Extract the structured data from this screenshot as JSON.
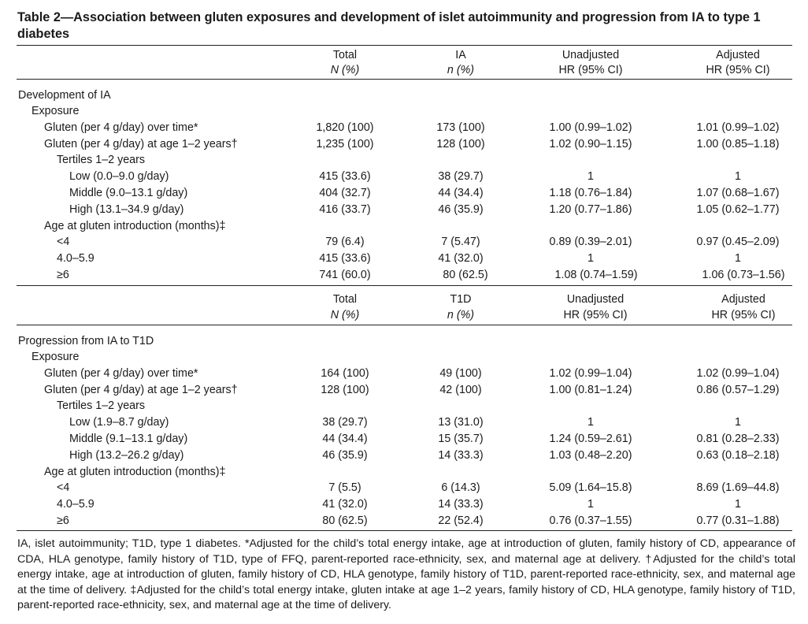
{
  "title": "Table 2—Association between gluten exposures and development of islet autoimmunity and progression from IA to type 1 diabetes",
  "header1": {
    "total": "Total",
    "total_sub": "N (%)",
    "ia": "IA",
    "ia_sub": "n (%)",
    "unadj": "Unadjusted",
    "unadj_sub": "HR (95% CI)",
    "adj": "Adjusted",
    "adj_sub": "HR (95% CI)"
  },
  "header2": {
    "total": "Total",
    "total_sub": "N (%)",
    "t1d": "T1D",
    "t1d_sub": "n (%)",
    "unadj": "Unadjusted",
    "unadj_sub": "HR (95% CI)",
    "adj": "Adjusted",
    "adj_sub": "HR (95% CI)"
  },
  "section1": {
    "heading": "Development of IA",
    "rows": [
      {
        "label": "Exposure",
        "total": "",
        "n": "",
        "unadj": "",
        "adj": ""
      },
      {
        "label": "Gluten (per 4 g/day) over time*",
        "total": "1,820 (100)",
        "n": "173 (100)",
        "unadj": "1.00 (0.99–1.02)",
        "adj": "1.01 (0.99–1.02)"
      },
      {
        "label": "Gluten (per 4 g/day) at age 1–2 years†",
        "total": "1,235 (100)",
        "n": "128 (100)",
        "unadj": "1.02 (0.90–1.15)",
        "adj": "1.00 (0.85–1.18)"
      },
      {
        "label": "Tertiles 1–2 years",
        "total": "",
        "n": "",
        "unadj": "",
        "adj": ""
      },
      {
        "label": "Low (0.0–9.0 g/day)",
        "total": "415 (33.6)",
        "n": "38 (29.7)",
        "unadj": "1",
        "adj": "1"
      },
      {
        "label": "Middle (9.0–13.1 g/day)",
        "total": "404 (32.7)",
        "n": "44 (34.4)",
        "unadj": "1.18 (0.76–1.84)",
        "adj": "1.07 (0.68–1.67)"
      },
      {
        "label": "High (13.1–34.9 g/day)",
        "total": "416 (33.7)",
        "n": "46 (35.9)",
        "unadj": "1.20 (0.77–1.86)",
        "adj": "1.05 (0.62–1.77)"
      },
      {
        "label": "Age at gluten introduction (months)‡",
        "total": "",
        "n": "",
        "unadj": "",
        "adj": ""
      },
      {
        "label": "<4",
        "total": "79 (6.4)",
        "n": "7 (5.47)",
        "unadj": "0.89 (0.39–2.01)",
        "adj": "0.97 (0.45–2.09)"
      },
      {
        "label": "4.0–5.9",
        "total": "415 (33.6)",
        "n": "41 (32.0)",
        "unadj": "1",
        "adj": "1"
      },
      {
        "label": "≥6",
        "total": "741 (60.0)",
        "n": "80 (62.5)",
        "unadj": "1.08 (0.74–1.59)",
        "adj": "1.06 (0.73–1.56)"
      }
    ]
  },
  "section2": {
    "heading": "Progression from IA to T1D",
    "rows": [
      {
        "label": "Exposure",
        "total": "",
        "n": "",
        "unadj": "",
        "adj": ""
      },
      {
        "label": "Gluten (per 4 g/day) over time*",
        "total": "164 (100)",
        "n": "49 (100)",
        "unadj": "1.02 (0.99–1.04)",
        "adj": "1.02 (0.99–1.04)"
      },
      {
        "label": "Gluten (per 4 g/day) at age 1–2 years†",
        "total": "128 (100)",
        "n": "42 (100)",
        "unadj": "1.00 (0.81–1.24)",
        "adj": "0.86 (0.57–1.29)"
      },
      {
        "label": "Tertiles 1–2 years",
        "total": "",
        "n": "",
        "unadj": "",
        "adj": ""
      },
      {
        "label": "Low (1.9–8.7 g/day)",
        "total": "38 (29.7)",
        "n": "13 (31.0)",
        "unadj": "1",
        "adj": "1"
      },
      {
        "label": "Middle (9.1–13.1 g/day)",
        "total": "44 (34.4)",
        "n": "15 (35.7)",
        "unadj": "1.24 (0.59–2.61)",
        "adj": "0.81 (0.28–2.33)"
      },
      {
        "label": "High (13.2–26.2 g/day)",
        "total": "46 (35.9)",
        "n": "14 (33.3)",
        "unadj": "1.03 (0.48–2.20)",
        "adj": "0.63 (0.18–2.18)"
      },
      {
        "label": "Age at gluten introduction (months)‡",
        "total": "",
        "n": "",
        "unadj": "",
        "adj": ""
      },
      {
        "label": "<4",
        "total": "7 (5.5)",
        "n": "6 (14.3)",
        "unadj": "5.09 (1.64–15.8)",
        "adj": "8.69 (1.69–44.8)"
      },
      {
        "label": "4.0–5.9",
        "total": "41 (32.0)",
        "n": "14 (33.3)",
        "unadj": "1",
        "adj": "1"
      },
      {
        "label": "≥6",
        "total": "80 (62.5)",
        "n": "22 (52.4)",
        "unadj": "0.76 (0.37–1.55)",
        "adj": "0.77 (0.31–1.88)"
      }
    ]
  },
  "footnote": "IA, islet autoimmunity; T1D, type 1 diabetes. *Adjusted for the child’s total energy intake, age at introduction of gluten, family history of CD, appearance of CDA, HLA genotype, family history of T1D, type of FFQ, parent-reported race-ethnicity, sex, and maternal age at delivery. †Adjusted for the child’s total energy intake, age at introduction of gluten, family history of CD, HLA genotype, family history of T1D, parent-reported race-ethnicity, sex, and maternal age at the time of delivery. ‡Adjusted for the child’s total energy intake, gluten intake at age 1–2 years, family history of CD, HLA genotype, family history of T1D, parent-reported race-ethnicity, sex, and maternal age at the time of delivery."
}
